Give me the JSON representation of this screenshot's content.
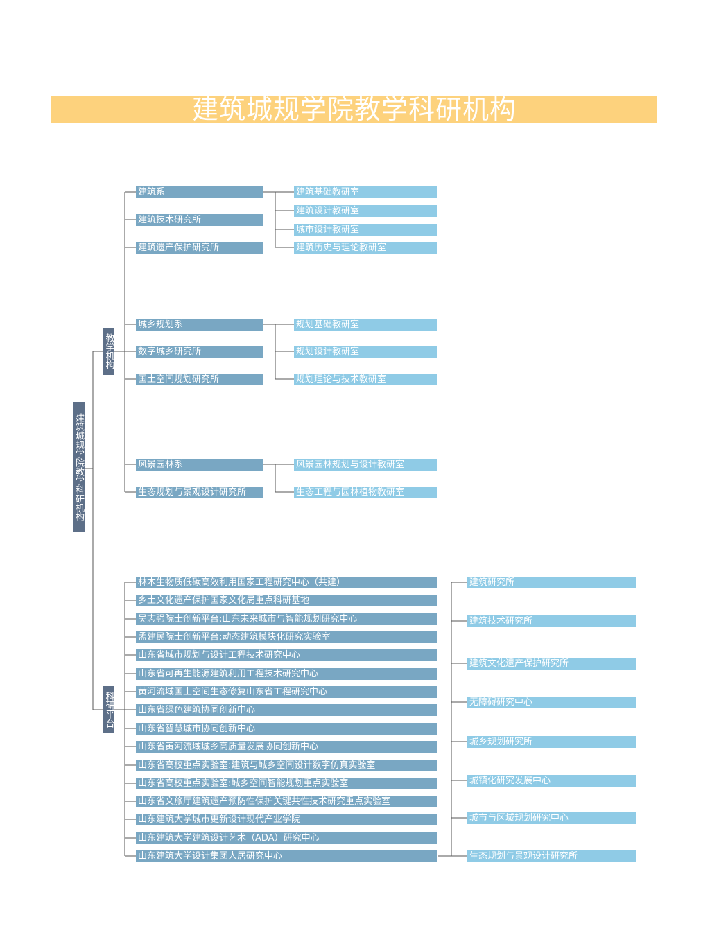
{
  "title": "建筑城规学院教学科研机构",
  "root": "建筑城规学院教学科研机构",
  "teaching": {
    "label": "教学机构",
    "group1": {
      "units": [
        "建筑系",
        "建筑技术研究所",
        "建筑遗产保护研究所"
      ],
      "sections": [
        "建筑基础教研室",
        "建筑设计教研室",
        "城市设计教研室",
        "建筑历史与理论教研室"
      ]
    },
    "group2": {
      "units": [
        "城乡规划系",
        "数字城乡研究所",
        "国土空间规划研究所"
      ],
      "sections": [
        "规划基础教研室",
        "规划设计教研室",
        "规划理论与技术教研室"
      ]
    },
    "group3": {
      "units": [
        "风景园林系",
        "生态规划与景观设计研究所"
      ],
      "sections": [
        "风景园林规划与设计教研室",
        "生态工程与园林植物教研室"
      ]
    }
  },
  "research": {
    "label": "科研平台",
    "platforms": [
      "林木生物质低碳高效利用国家工程研究中心（共建）",
      "乡土文化遗产保护国家文化局重点科研基地",
      "吴志强院士创新平台:山东未来城市与智能规划研究中心",
      "孟建民院士创新平台:动态建筑模块化研究实验室",
      "山东省城市规划与设计工程技术研究中心",
      "山东省可再生能源建筑利用工程技术研究中心",
      "黄河流域国土空间生态修复山东省工程研究中心",
      "山东省绿色建筑协同创新中心",
      "山东省智慧城市协同创新中心",
      "山东省黄河流域城乡高质量发展协同创新中心",
      "山东省高校重点实验室:建筑与城乡空间设计数字仿真实验室",
      "山东省高校重点实验室:城乡空间智能规划重点实验室",
      "山东省文旅厅建筑遗产预防性保护关键共性技术研究重点实验室",
      "山东建筑大学城市更新设计现代产业学院",
      "山东建筑大学建筑设计艺术（ADA）研究中心",
      "山东建筑大学设计集团人居研究中心"
    ],
    "institutes": [
      "建筑研究所",
      "建筑技术研究所",
      "建筑文化遗产保护研究所",
      "无障碍研究中心",
      "城乡规划研究所",
      "城镇化研究发展中心",
      "城市与区域规划研究中心",
      "生态规划与景观设计研究所"
    ]
  },
  "colors": {
    "title_bg": "#fdd27d",
    "root_box": "#5d6f88",
    "unit_box": "#79a7c3",
    "section_box": "#8fcbe6",
    "line": "#555555"
  }
}
